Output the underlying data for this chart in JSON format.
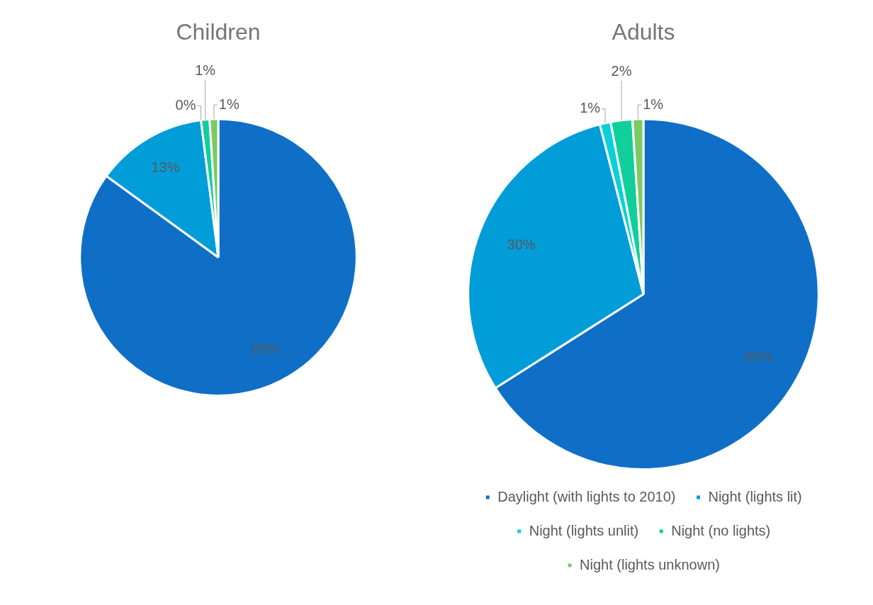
{
  "chart_data": [
    {
      "type": "pie",
      "title": "Children",
      "categories": [
        null,
        null,
        null,
        null,
        null
      ],
      "values": [
        85,
        13,
        0,
        1,
        1
      ],
      "value_labels": [
        "85%",
        "13%",
        "0%",
        "1%",
        "1%"
      ],
      "colors": [
        "#0f6fc6",
        "#009dd9",
        "#0bd0d9",
        "#10cf9b",
        "#7cca62"
      ],
      "legend": false
    },
    {
      "type": "pie",
      "title": "Adults",
      "categories": [
        "Daylight (with lights to 2010)",
        "Night (lights lit)",
        "Night (lights unlit)",
        "Night (no lights)",
        "Night (lights unknown)"
      ],
      "values": [
        66,
        30,
        1,
        2,
        1
      ],
      "value_labels": [
        "66%",
        "30%",
        "1%",
        "2%",
        "1%"
      ],
      "colors": [
        "#0f6fc6",
        "#009dd9",
        "#0bd0d9",
        "#10cf9b",
        "#7cca62"
      ],
      "legend": "bottom"
    }
  ]
}
